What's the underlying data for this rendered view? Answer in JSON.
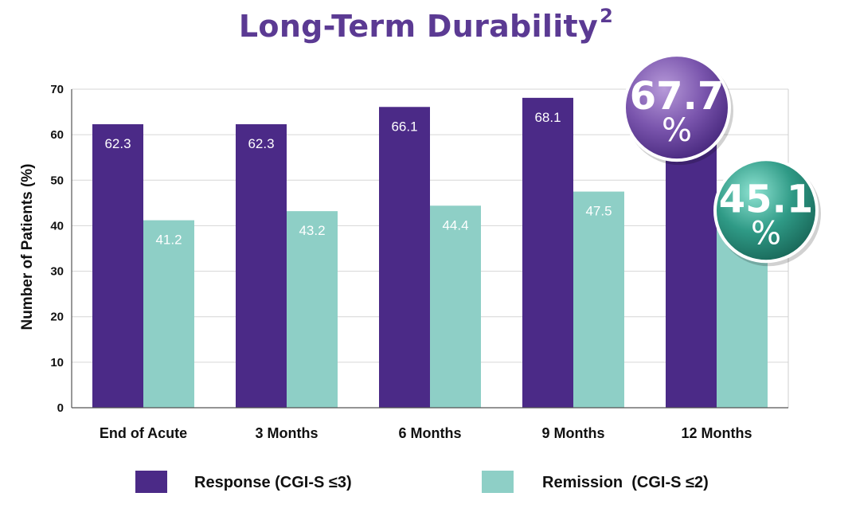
{
  "colors": {
    "response": "#4b2a87",
    "remission": "#8ecfc6",
    "title": "#5b3a93",
    "response_bubble": "#7a55ad",
    "remission_bubble": "#2f9a86"
  },
  "chart_data": {
    "type": "bar",
    "title": "Long-Term Durability",
    "title_superscript": "2",
    "ylabel": "Number of Patients (%)",
    "xlabel": "",
    "ylim": [
      0,
      70
    ],
    "yticks": [
      0,
      10,
      20,
      30,
      40,
      50,
      60,
      70
    ],
    "grid": true,
    "legend_position": "bottom",
    "categories": [
      "End of Acute",
      "3 Months",
      "6 Months",
      "9 Months",
      "12 Months"
    ],
    "series": [
      {
        "name": "Response (CGI-S ≤3)",
        "values": [
          62.3,
          62.3,
          66.1,
          68.1,
          67.7
        ],
        "labels": [
          "62.3",
          "62.3",
          "66.1",
          "68.1",
          ""
        ]
      },
      {
        "name": "Remission  (CGI-S ≤2)",
        "values": [
          41.2,
          43.2,
          44.4,
          47.5,
          45.1
        ],
        "labels": [
          "41.2",
          "43.2",
          "44.4",
          "47.5",
          ""
        ]
      }
    ],
    "callouts": [
      {
        "series": 0,
        "value": "67.7",
        "unit": "%"
      },
      {
        "series": 1,
        "value": "45.1",
        "unit": "%"
      }
    ]
  }
}
